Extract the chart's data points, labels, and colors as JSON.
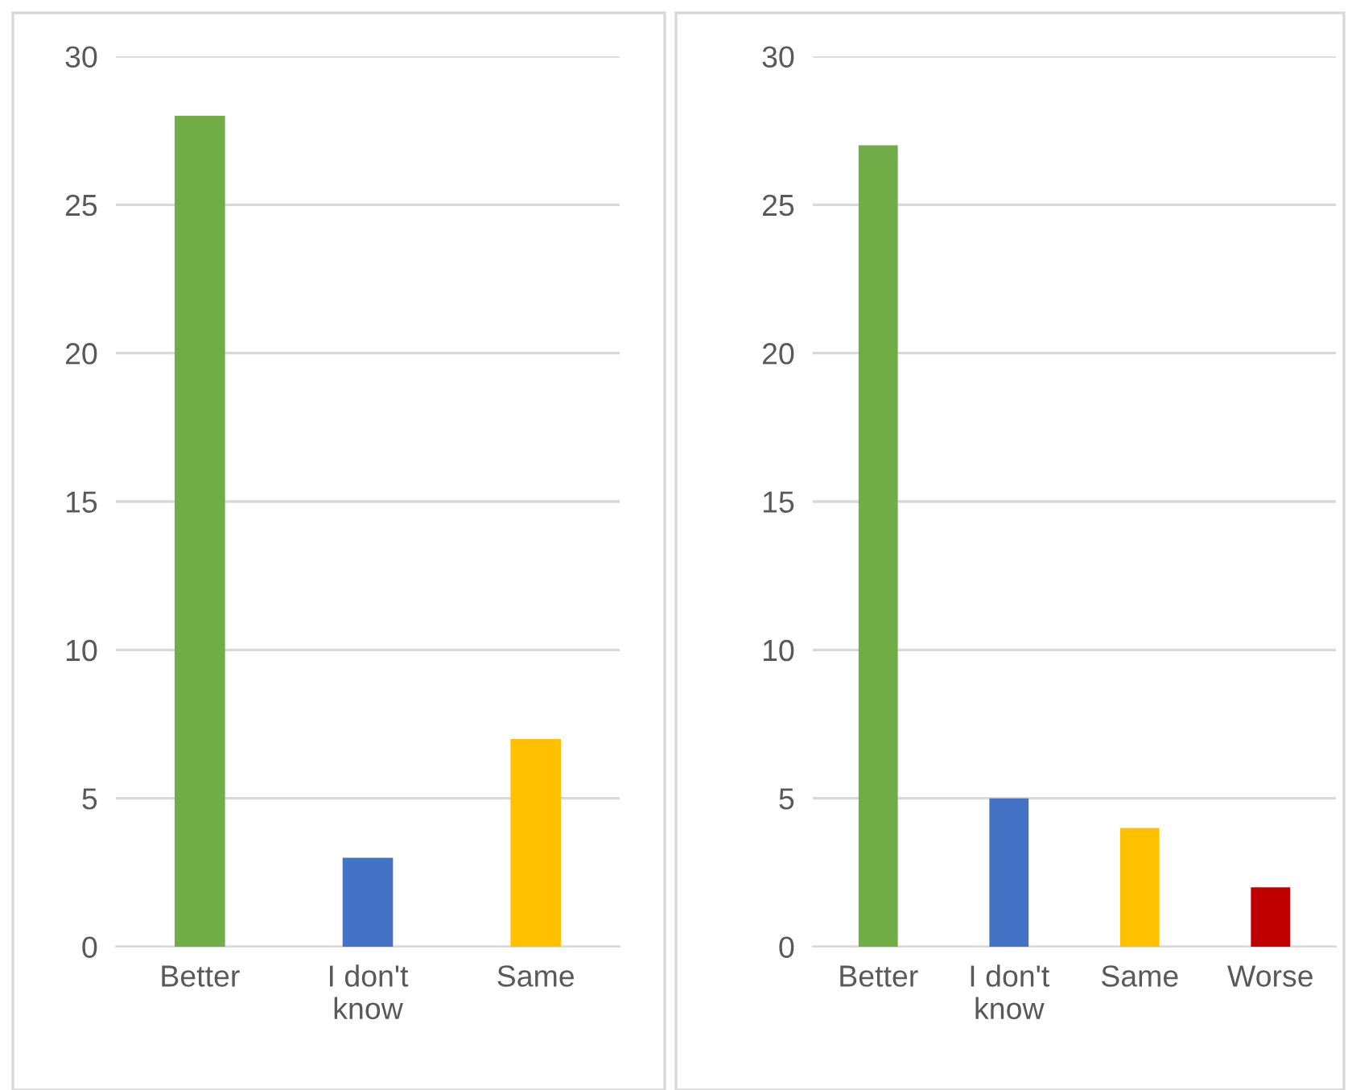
{
  "chart_data": [
    {
      "type": "bar",
      "categories": [
        "Better",
        "I don't know",
        "Same"
      ],
      "values": [
        28,
        3,
        7
      ],
      "colors": [
        "#70ad47",
        "#4472c4",
        "#ffc000"
      ],
      "ylim": [
        0,
        30
      ],
      "yticks": [
        0,
        5,
        10,
        15,
        20,
        25,
        30
      ],
      "grid": "y"
    },
    {
      "type": "bar",
      "categories": [
        "Better",
        "I don't know",
        "Same",
        "Worse"
      ],
      "values": [
        27,
        5,
        4,
        2
      ],
      "colors": [
        "#70ad47",
        "#4472c4",
        "#ffc000",
        "#c00000"
      ],
      "ylim": [
        0,
        30
      ],
      "yticks": [
        0,
        5,
        10,
        15,
        20,
        25,
        30
      ],
      "grid": "y"
    }
  ]
}
